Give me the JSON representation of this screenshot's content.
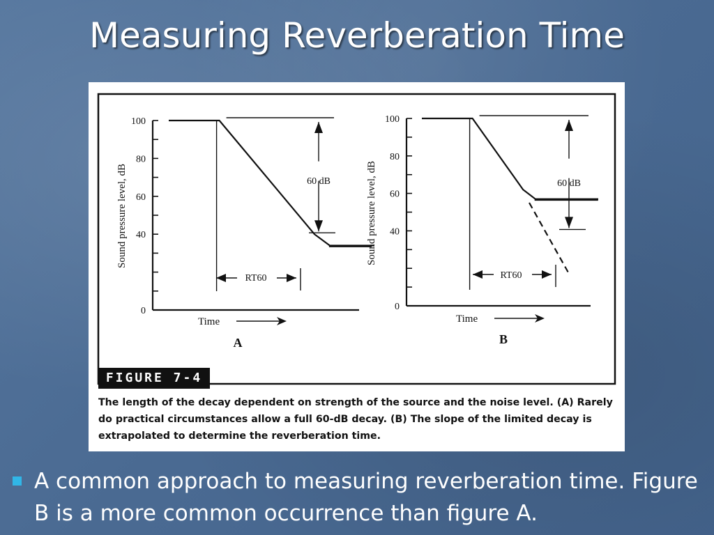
{
  "slide": {
    "title": "Measuring Reverberation Time",
    "bullet": "A common approach to measuring reverberation time. Figure B is a more common occurrence than figure A."
  },
  "figure": {
    "label": "FIGURE 7-4",
    "caption": "The length of the decay dependent on strength of the source and the noise level. (A) Rarely do practical circumstances allow a full 60-dB decay. (B) The slope of the limited decay is extrapolated to determine the reverberation time."
  },
  "chart_data": [
    {
      "type": "line",
      "panel": "A",
      "ylabel": "Sound pressure level, dB",
      "xlabel": "Time",
      "ylim": [
        0,
        100
      ],
      "yticks": [
        0,
        40,
        60,
        80,
        100
      ],
      "annotations": {
        "range": "60 dB",
        "span": "RT60"
      },
      "series": [
        {
          "x": [
            0,
            3.3,
            9.5,
            10.5,
            13.4
          ],
          "y": [
            100,
            100,
            40,
            34,
            34
          ]
        }
      ]
    },
    {
      "type": "line",
      "panel": "B",
      "ylabel": "Sound pressure level, dB",
      "xlabel": "Time",
      "ylim": [
        0,
        100
      ],
      "yticks": [
        0,
        40,
        60,
        80,
        100
      ],
      "annotations": {
        "range": "60 dB",
        "span": "RT60"
      },
      "series": [
        {
          "x": [
            0,
            3.3,
            6.6,
            7.4,
            11.5
          ],
          "y": [
            100,
            100,
            62,
            57,
            57
          ]
        },
        {
          "x": [
            7.0,
            9.6
          ],
          "y": [
            55,
            17
          ],
          "dashed": true
        }
      ]
    }
  ],
  "colors": {
    "background": "#4a6c96",
    "bullet": "#31b6e7",
    "title": "#ffffff"
  }
}
